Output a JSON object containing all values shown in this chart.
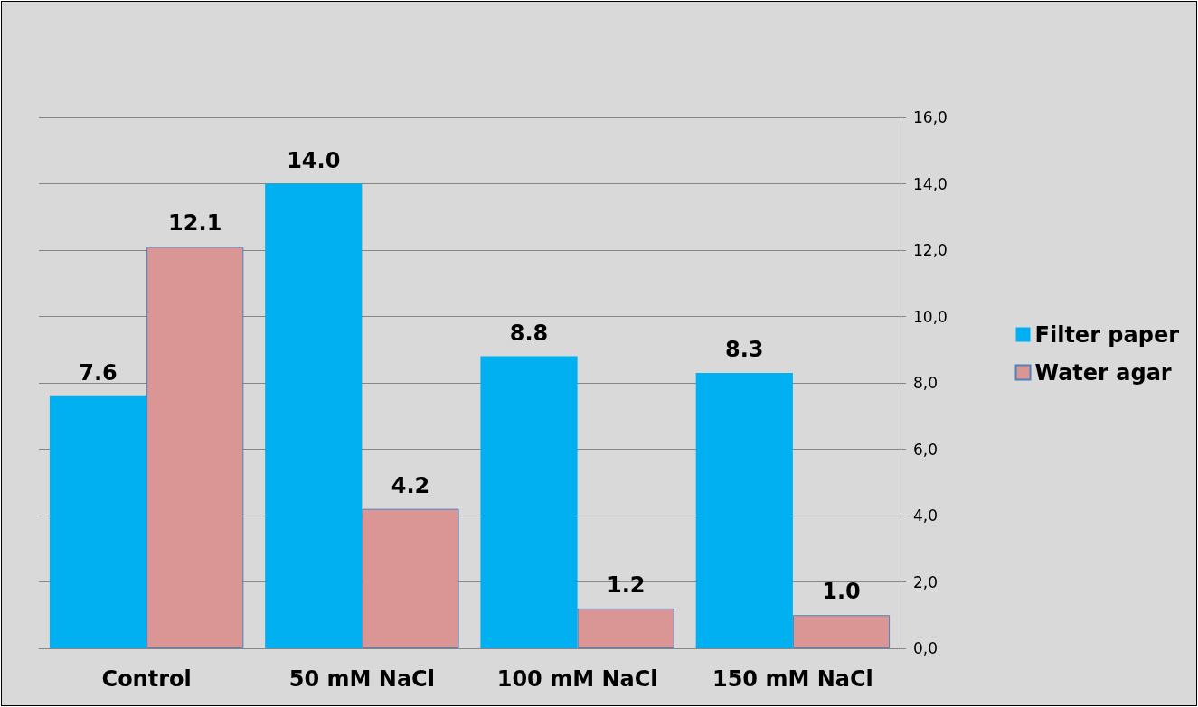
{
  "chart_data": {
    "type": "bar",
    "categories": [
      "Control",
      "50 mM NaCl",
      "100 mM NaCl",
      "150 mM NaCl"
    ],
    "series": [
      {
        "name": "Filter paper",
        "color": "#00b0f0",
        "values": [
          7.6,
          14.0,
          8.8,
          8.3
        ],
        "value_labels": [
          "7.6",
          "14.0",
          "8.8",
          "8.3"
        ]
      },
      {
        "name": "Water agar",
        "color": "#d99694",
        "values": [
          12.1,
          4.2,
          1.2,
          1.0
        ],
        "value_labels": [
          "12.1",
          "4.2",
          "1.2",
          "1.0"
        ]
      }
    ],
    "ylim": [
      0,
      16
    ],
    "yticks": [
      {
        "value": 0,
        "label": "0,0"
      },
      {
        "value": 2,
        "label": "2,0"
      },
      {
        "value": 4,
        "label": "4,0"
      },
      {
        "value": 6,
        "label": "6,0"
      },
      {
        "value": 8,
        "label": "8,0"
      },
      {
        "value": 10,
        "label": "10,0"
      },
      {
        "value": 12,
        "label": "12,0"
      },
      {
        "value": 14,
        "label": "14,0"
      },
      {
        "value": 16,
        "label": "16,0"
      }
    ],
    "grid": "y",
    "legend": "right"
  }
}
